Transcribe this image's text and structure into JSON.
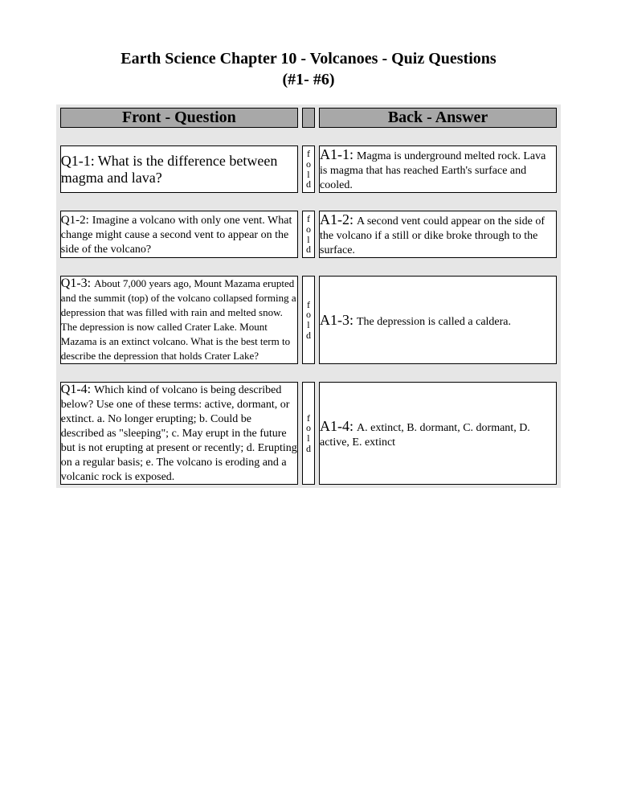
{
  "title_line1": "Earth Science Chapter 10 - Volcanoes - Quiz Questions",
  "title_line2": "(#1- #6)",
  "headers": {
    "front": "Front - Question",
    "back": "Back - Answer"
  },
  "fold": "fold",
  "cards": [
    {
      "q_tag": "Q1-1:",
      "q_text": "What is the difference between magma and lava?",
      "q_size": "q-text",
      "a_tag": "A1-1:",
      "a_text": "Magma is underground melted rock. Lava is magma that has reached Earth's surface and cooled."
    },
    {
      "q_tag": "Q1-2:",
      "q_text": "Imagine a volcano with only one vent. What change might cause a second vent to appear on the side of the volcano?",
      "q_size": "q-text-md",
      "a_tag": "A1-2:",
      "a_text": "A second vent could appear on the side of the volcano if a still or dike broke through to the surface."
    },
    {
      "q_tag": "Q1-3:",
      "q_text": "About 7,000 years ago, Mount Mazama erupted and the summit (top) of the volcano collapsed forming a depression that was filled with rain and melted snow. The depression is now called Crater Lake. Mount Mazama is an extinct volcano. What is the best term to describe the depression that holds Crater Lake?",
      "q_size": "q-text-sm",
      "a_tag": "A1-3:",
      "a_text": "The depression is called a caldera."
    },
    {
      "q_tag": "Q1-4:",
      "q_text": "Which kind of volcano is being described below? Use one of these terms: active, dormant, or extinct. a. No longer erupting; b. Could be described as \"sleeping\"; c. May erupt in the future but is not erupting at present or recently; d. Erupting on a regular basis; e. The volcano is eroding and a volcanic rock is exposed.",
      "q_size": "q-text-md",
      "a_tag": "A1-4:",
      "a_text": "A. extinct, B. dormant, C. dormant, D. active, E. extinct"
    }
  ],
  "colors": {
    "header_bg": "#a8a8a8",
    "outer_bg": "#e6e6e6",
    "border": "#000000",
    "card_bg": "#ffffff"
  }
}
